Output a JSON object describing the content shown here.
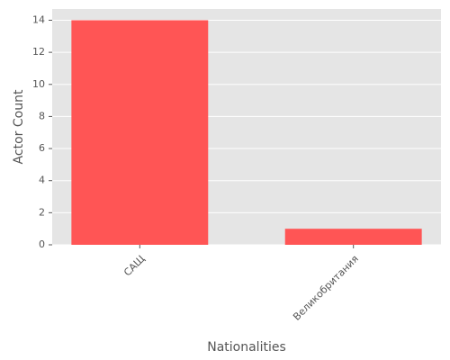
{
  "chart_data": {
    "type": "bar",
    "categories": [
      "САЩ",
      "Великобритания"
    ],
    "values": [
      14,
      1
    ],
    "color": "#ff5555",
    "xlabel": "Nationalities",
    "ylabel": "Actor Count",
    "ylim": [
      0,
      14.7
    ],
    "yticks": [
      0,
      2,
      4,
      6,
      8,
      10,
      12,
      14
    ],
    "grid": true
  }
}
